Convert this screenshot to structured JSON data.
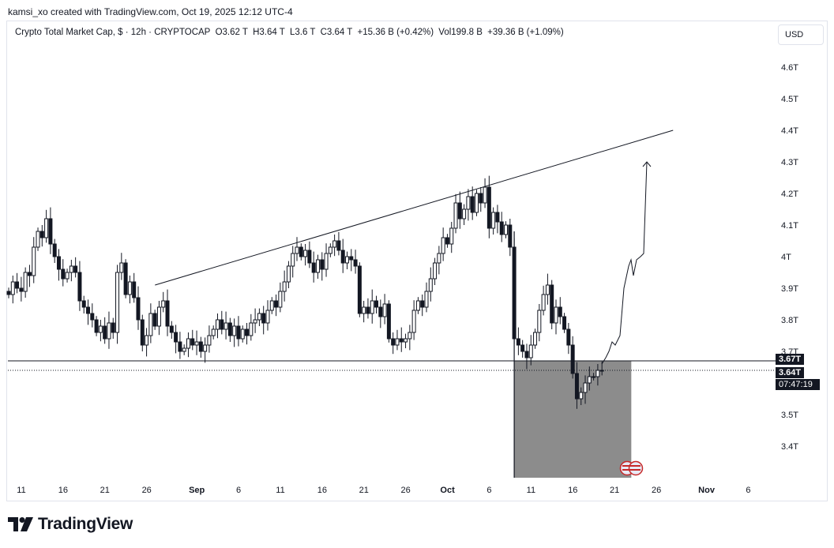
{
  "header": {
    "text": "kamsi_xo created with TradingView.com, Oct 19, 2025 12:12 UTC-4"
  },
  "legend": {
    "symbol": "Crypto Total Market Cap, $ · 12h · CRYPTOCAP",
    "open": "O3.62 T",
    "high": "H3.64 T",
    "low": "L3.6 T",
    "close": "C3.64 T",
    "change": "+15.36 B (+0.42%)",
    "volume": "Vol199.8 B",
    "volume_change": "+39.36 B (+1.09%)"
  },
  "currency_button": "USD",
  "price_tags": {
    "level": "3.67T",
    "last": "3.64T",
    "countdown": "07:47:19"
  },
  "footer": {
    "brand": "TradingView"
  },
  "colors": {
    "candle": "#131722",
    "zone": "#8c8c8c",
    "line": "#131722",
    "tag_bg": "#131722"
  },
  "chart_data": {
    "type": "candlestick",
    "title": "Crypto Total Market Cap, $ · 12h · CRYPTOCAP",
    "ylim": [
      3.3,
      4.7
    ],
    "y_ticks": [
      3.4,
      3.5,
      3.7,
      3.8,
      3.9,
      4.0,
      4.1,
      4.2,
      4.3,
      4.4,
      4.5,
      4.6
    ],
    "y_tick_labels": [
      "3.4T",
      "3.5T",
      "3.7T",
      "3.8T",
      "3.9T",
      "4T",
      "4.1T",
      "4.2T",
      "4.3T",
      "4.4T",
      "4.5T",
      "4.6T"
    ],
    "x_ticks": [
      {
        "label": "11",
        "date": "2025-08-11"
      },
      {
        "label": "16",
        "date": "2025-08-16"
      },
      {
        "label": "21",
        "date": "2025-08-21"
      },
      {
        "label": "26",
        "date": "2025-08-26"
      },
      {
        "label": "Sep",
        "date": "2025-09-01"
      },
      {
        "label": "6",
        "date": "2025-09-06"
      },
      {
        "label": "11",
        "date": "2025-09-11"
      },
      {
        "label": "16",
        "date": "2025-09-16"
      },
      {
        "label": "21",
        "date": "2025-09-21"
      },
      {
        "label": "26",
        "date": "2025-09-26"
      },
      {
        "label": "Oct",
        "date": "2025-10-01"
      },
      {
        "label": "6",
        "date": "2025-10-06"
      },
      {
        "label": "11",
        "date": "2025-10-11"
      },
      {
        "label": "16",
        "date": "2025-10-16"
      },
      {
        "label": "21",
        "date": "2025-10-21"
      },
      {
        "label": "26",
        "date": "2025-10-26"
      },
      {
        "label": "Nov",
        "date": "2025-11-01"
      },
      {
        "label": "6",
        "date": "2025-11-06"
      }
    ],
    "closes": [
      3.88,
      3.92,
      3.9,
      3.89,
      3.95,
      3.94,
      4.03,
      4.08,
      4.06,
      4.12,
      4.04,
      4.0,
      3.96,
      3.93,
      3.95,
      3.97,
      3.95,
      3.86,
      3.84,
      3.82,
      3.8,
      3.76,
      3.78,
      3.74,
      3.79,
      3.76,
      3.95,
      3.98,
      3.88,
      3.92,
      3.87,
      3.8,
      3.72,
      3.75,
      3.82,
      3.78,
      3.84,
      3.86,
      3.78,
      3.76,
      3.73,
      3.7,
      3.71,
      3.74,
      3.72,
      3.73,
      3.7,
      3.72,
      3.75,
      3.77,
      3.8,
      3.77,
      3.79,
      3.75,
      3.78,
      3.74,
      3.77,
      3.75,
      3.79,
      3.8,
      3.82,
      3.79,
      3.83,
      3.86,
      3.84,
      3.89,
      3.92,
      3.97,
      4.01,
      4.03,
      4.0,
      4.02,
      3.98,
      3.95,
      3.99,
      3.96,
      4.01,
      4.03,
      4.05,
      4.02,
      3.98,
      4.0,
      3.99,
      3.97,
      3.82,
      3.84,
      3.82,
      3.86,
      3.84,
      3.81,
      3.85,
      3.74,
      3.72,
      3.74,
      3.73,
      3.74,
      3.76,
      3.83,
      3.86,
      3.84,
      3.89,
      3.93,
      3.98,
      4.01,
      4.06,
      4.04,
      4.09,
      4.17,
      4.12,
      4.15,
      4.19,
      4.14,
      4.2,
      4.17,
      4.22,
      4.09,
      4.14,
      4.11,
      4.07,
      4.1,
      4.03,
      3.74,
      3.72,
      3.7,
      3.68,
      3.72,
      3.76,
      3.83,
      3.88,
      3.91,
      3.79,
      3.84,
      3.81,
      3.77,
      3.72,
      3.63,
      3.55,
      3.57,
      3.6,
      3.62,
      3.62,
      3.64,
      3.64
    ],
    "annotations": {
      "horizontal_level": 3.67,
      "trendline": [
        {
          "date": "2025-08-27",
          "value": 3.91
        },
        {
          "date": "2025-10-28",
          "value": 4.4
        }
      ],
      "zone": {
        "from": "2025-10-09",
        "to": "2025-10-23",
        "top": 3.67,
        "bottom": 3.3
      },
      "projection": [
        3.66,
        3.68,
        3.7,
        3.73,
        3.72,
        3.75,
        3.9,
        3.97,
        3.99,
        3.94,
        3.99,
        4.0,
        4.01,
        4.3
      ]
    }
  }
}
